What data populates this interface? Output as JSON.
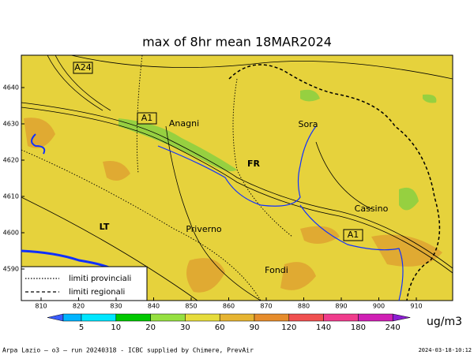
{
  "title": "max of 8hr mean 18MAR2024",
  "x_ticks": [
    "810",
    "820",
    "830",
    "840",
    "850",
    "860",
    "870",
    "880",
    "890",
    "900",
    "910"
  ],
  "y_ticks": [
    "4640",
    "4630",
    "4620",
    "4610",
    "4600",
    "4590"
  ],
  "places": [
    "A24",
    "A1",
    "Anagni",
    "Sora",
    "FR",
    "Cassino",
    "A1",
    "LT",
    "Priverno",
    "Fondi"
  ],
  "legend": [
    "limiti provinciali",
    "limiti regionali"
  ],
  "colorbar": {
    "labels": [
      "5",
      "10",
      "20",
      "30",
      "60",
      "90",
      "120",
      "140",
      "180",
      "240"
    ],
    "unit": "ug/m3",
    "colors": [
      "#3a5cff",
      "#00b4ff",
      "#00e6ff",
      "#00c800",
      "#96e040",
      "#e6dc3c",
      "#e6b432",
      "#e68c2c",
      "#f05050",
      "#f03c8c",
      "#d020b4",
      "#8c1ed2"
    ]
  },
  "footer": {
    "left": "Arpa Lazio — o3 — run 20240318 - ICBC supplied by Chimere, PrevAir",
    "right": "2024-03-18-10:12"
  }
}
